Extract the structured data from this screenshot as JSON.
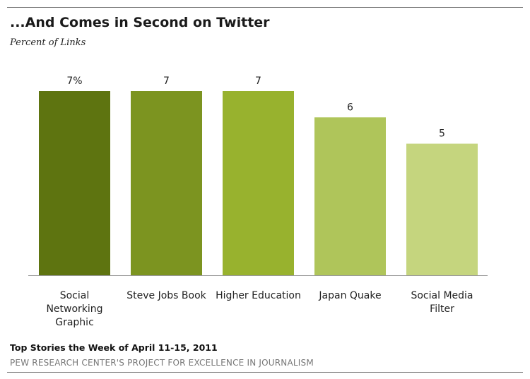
{
  "title": "...And Comes in Second on Twitter",
  "subtitle": "Percent of Links",
  "note": "Top Stories the Week of April 11-15, 2011",
  "source": "PEW RESEARCH CENTER'S PROJECT FOR EXCELLENCE IN JOURNALISM",
  "chart_data": {
    "type": "bar",
    "categories": [
      "Social Networking Graphic",
      "Steve Jobs Book",
      "Higher Education",
      "Japan Quake",
      "Social Media Filter"
    ],
    "values": [
      7,
      7,
      7,
      6,
      5
    ],
    "value_labels": [
      "7%",
      "7",
      "7",
      "6",
      "5"
    ],
    "colors": [
      "#5e7410",
      "#7c9420",
      "#98b22e",
      "#afc55a",
      "#c5d57e"
    ],
    "ylim": [
      0,
      7
    ],
    "grid": false,
    "legend": "none"
  }
}
